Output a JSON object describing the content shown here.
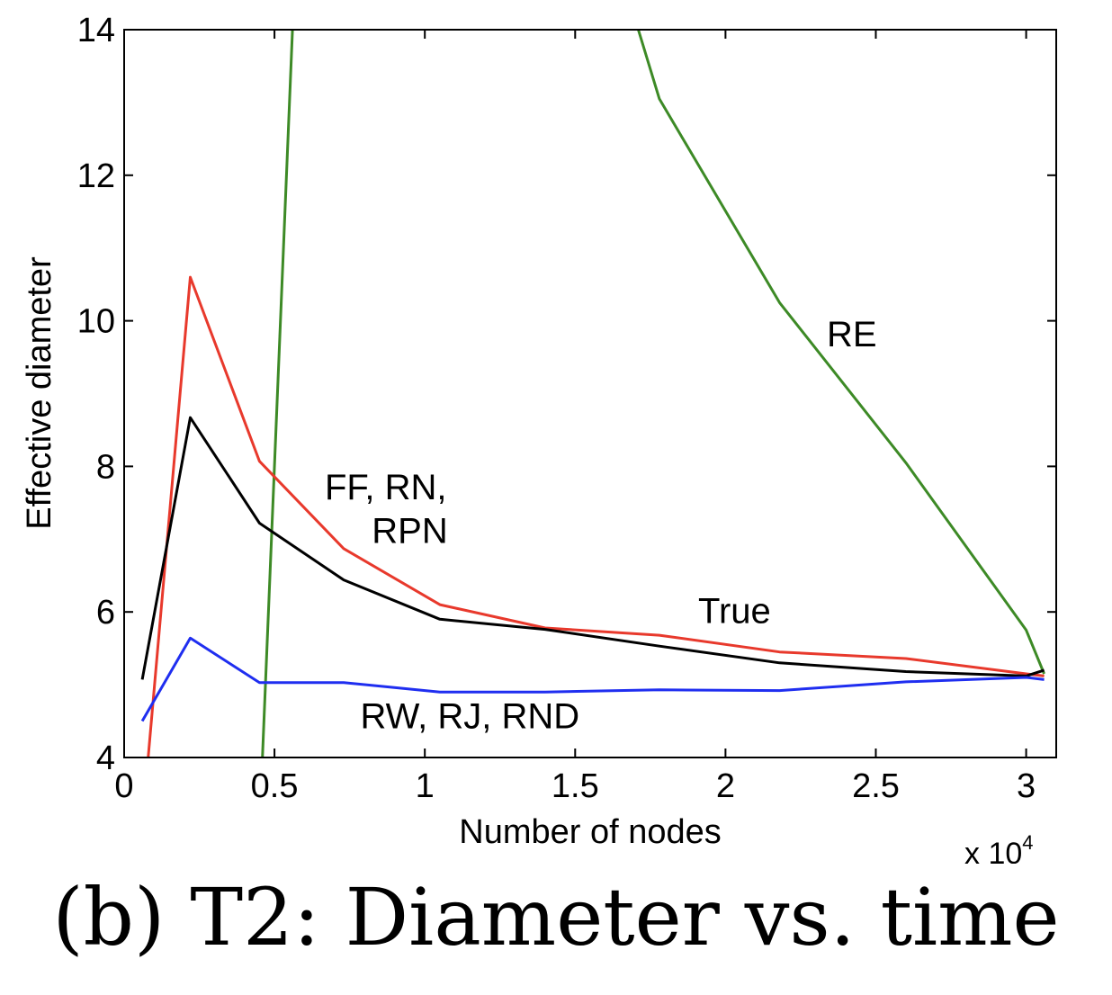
{
  "caption": "(b) T2: Diameter vs. time",
  "chart_data": {
    "type": "line",
    "xlabel": "Number of nodes",
    "ylabel": "Effective diameter",
    "x_multiplier_label": "x 10",
    "x_multiplier_exponent": "4",
    "xlim": [
      0,
      3.1
    ],
    "ylim": [
      4,
      14
    ],
    "xticks": [
      0,
      0.5,
      1,
      1.5,
      2,
      2.5,
      3
    ],
    "xtick_labels": [
      "0",
      "0.5",
      "1",
      "1.5",
      "2",
      "2.5",
      "3"
    ],
    "yticks": [
      4,
      6,
      8,
      10,
      12,
      14
    ],
    "ytick_labels": [
      "4",
      "6",
      "8",
      "10",
      "12",
      "14"
    ],
    "grid": false,
    "series": [
      {
        "key": "green-left",
        "color": "#3d8a26",
        "x": [
          0.46,
          0.56
        ],
        "y": [
          4.0,
          14.0
        ]
      },
      {
        "key": "green-re",
        "color": "#3d8a26",
        "x": [
          1.71,
          1.78,
          2.18,
          2.6,
          3.0,
          3.06
        ],
        "y": [
          14.0,
          13.05,
          10.25,
          8.05,
          5.75,
          5.15
        ]
      },
      {
        "key": "red",
        "color": "#e8392c",
        "x": [
          0.08,
          0.22,
          0.45,
          0.73,
          1.05,
          1.4,
          1.78,
          2.18,
          2.6,
          3.0,
          3.06
        ],
        "y": [
          4.0,
          10.6,
          8.07,
          6.87,
          6.1,
          5.78,
          5.68,
          5.45,
          5.36,
          5.15,
          5.12
        ]
      },
      {
        "key": "black",
        "color": "#000000",
        "x": [
          0.06,
          0.22,
          0.45,
          0.73,
          1.05,
          1.4,
          1.78,
          2.18,
          2.6,
          3.0,
          3.06
        ],
        "y": [
          5.07,
          8.67,
          7.22,
          6.44,
          5.9,
          5.76,
          5.53,
          5.3,
          5.18,
          5.12,
          5.2
        ]
      },
      {
        "key": "blue",
        "color": "#1f2ef0",
        "x": [
          0.06,
          0.22,
          0.45,
          0.73,
          1.05,
          1.4,
          1.78,
          2.18,
          2.6,
          3.0,
          3.06
        ],
        "y": [
          4.5,
          5.64,
          5.03,
          5.03,
          4.9,
          4.9,
          4.93,
          4.92,
          5.04,
          5.1,
          5.07
        ]
      }
    ],
    "annotations": [
      {
        "text": "RE",
        "x": 2.42,
        "y": 9.65
      },
      {
        "text": "FF, RN,",
        "x": 0.87,
        "y": 7.55
      },
      {
        "text": "RPN",
        "x": 0.95,
        "y": 6.95
      },
      {
        "text": "True",
        "x": 2.03,
        "y": 5.85
      },
      {
        "text": "RW, RJ, RND",
        "x": 1.15,
        "y": 4.4
      }
    ]
  }
}
